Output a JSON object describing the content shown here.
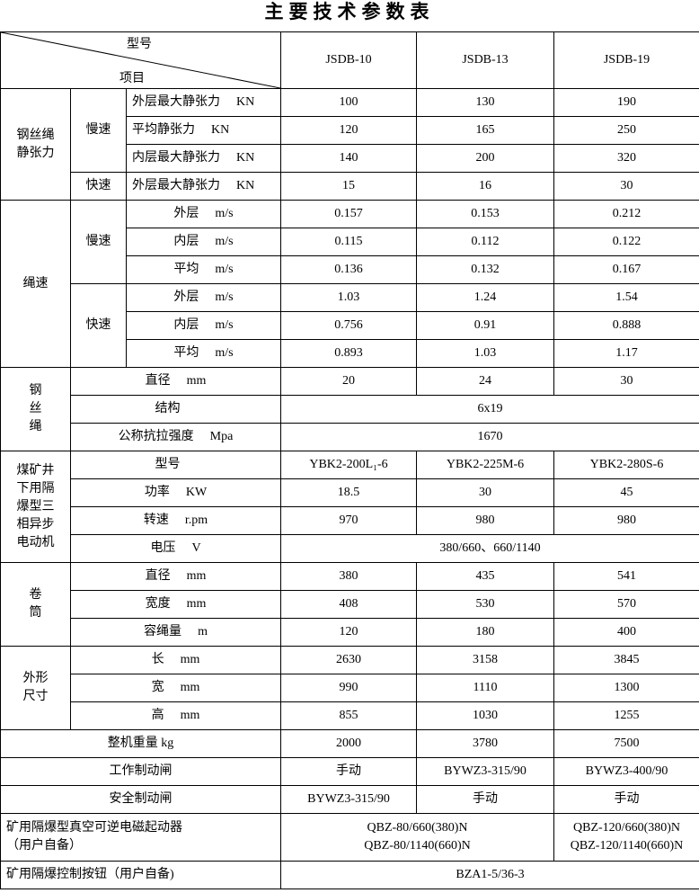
{
  "title": "主要技术参数表",
  "header": {
    "corner_top": "型号",
    "corner_bottom": "项目",
    "models": [
      "JSDB-10",
      "JSDB-13",
      "JSDB-19"
    ]
  },
  "tension": {
    "group": "钢丝绳\n静张力",
    "slow": "慢速",
    "fast": "快速",
    "rows": [
      {
        "label": {
          "name": "外层最大静张力",
          "unit": "KN"
        },
        "values": [
          "100",
          "130",
          "190"
        ]
      },
      {
        "label": {
          "name": "平均静张力",
          "unit": "KN"
        },
        "values": [
          "120",
          "165",
          "250"
        ]
      },
      {
        "label": {
          "name": "内层最大静张力",
          "unit": "KN"
        },
        "values": [
          "140",
          "200",
          "320"
        ]
      },
      {
        "label": {
          "name": "外层最大静张力",
          "unit": "KN"
        },
        "values": [
          "15",
          "16",
          "30"
        ]
      }
    ]
  },
  "speed": {
    "group": "绳速",
    "slow": "慢速",
    "fast": "快速",
    "rows": [
      {
        "label": {
          "name": "外层",
          "unit": "m/s"
        },
        "values": [
          "0.157",
          "0.153",
          "0.212"
        ]
      },
      {
        "label": {
          "name": "内层",
          "unit": "m/s"
        },
        "values": [
          "0.115",
          "0.112",
          "0.122"
        ]
      },
      {
        "label": {
          "name": "平均",
          "unit": "m/s"
        },
        "values": [
          "0.136",
          "0.132",
          "0.167"
        ]
      },
      {
        "label": {
          "name": "外层",
          "unit": "m/s"
        },
        "values": [
          "1.03",
          "1.24",
          "1.54"
        ]
      },
      {
        "label": {
          "name": "内层",
          "unit": "m/s"
        },
        "values": [
          "0.756",
          "0.91",
          "0.888"
        ]
      },
      {
        "label": {
          "name": "平均",
          "unit": "m/s"
        },
        "values": [
          "0.893",
          "1.03",
          "1.17"
        ]
      }
    ]
  },
  "rope": {
    "group": "钢\n丝\n绳",
    "rows": [
      {
        "label": {
          "name": "直径",
          "unit": "mm"
        },
        "values": [
          "20",
          "24",
          "30"
        ]
      },
      {
        "label": {
          "name": "结构",
          "unit": ""
        },
        "values": [
          "6x19"
        ]
      },
      {
        "label": {
          "name": "公称抗拉强度",
          "unit": "Mpa"
        },
        "values": [
          "1670"
        ]
      }
    ]
  },
  "motor": {
    "group": "煤矿井\n下用隔\n爆型三\n相异步\n电动机",
    "rows": [
      {
        "label": {
          "name": "型号",
          "unit": ""
        },
        "values": [
          "YBK2-200L₁-6",
          "YBK2-225M-6",
          "YBK2-280S-6"
        ]
      },
      {
        "label": {
          "name": "功率",
          "unit": "KW"
        },
        "values": [
          "18.5",
          "30",
          "45"
        ]
      },
      {
        "label": {
          "name": "转速",
          "unit": "r.pm"
        },
        "values": [
          "970",
          "980",
          "980"
        ]
      },
      {
        "label": {
          "name": "电压",
          "unit": "V"
        },
        "values": [
          "380/660、660/1140"
        ]
      }
    ]
  },
  "drum": {
    "group": "卷\n筒",
    "rows": [
      {
        "label": {
          "name": "直径",
          "unit": "mm"
        },
        "values": [
          "380",
          "435",
          "541"
        ]
      },
      {
        "label": {
          "name": "宽度",
          "unit": "mm"
        },
        "values": [
          "408",
          "530",
          "570"
        ]
      },
      {
        "label": {
          "name": "容绳量",
          "unit": "m"
        },
        "values": [
          "120",
          "180",
          "400"
        ]
      }
    ]
  },
  "dims": {
    "group": "外形\n尺寸",
    "rows": [
      {
        "label": {
          "name": "长",
          "unit": "mm"
        },
        "values": [
          "2630",
          "3158",
          "3845"
        ]
      },
      {
        "label": {
          "name": "宽",
          "unit": "mm"
        },
        "values": [
          "990",
          "1110",
          "1300"
        ]
      },
      {
        "label": {
          "name": "高",
          "unit": "mm"
        },
        "values": [
          "855",
          "1030",
          "1255"
        ]
      }
    ]
  },
  "weight": {
    "label": "整机重量 kg",
    "values": [
      "2000",
      "3780",
      "7500"
    ]
  },
  "work_brake": {
    "label": "工作制动闸",
    "values": [
      "手动",
      "BYWZ3-315/90",
      "BYWZ3-400/90"
    ]
  },
  "safety_brake": {
    "label": "安全制动闸",
    "values": [
      "BYWZ3-315/90",
      "手动",
      "手动"
    ]
  },
  "starter": {
    "label": "矿用隔爆型真空可逆电磁起动器\n      （用户自备）",
    "values": [
      "QBZ-80/660(380)N\nQBZ-80/1140(660)N",
      "QBZ-120/660(380)N\nQBZ-120/1140(660)N"
    ]
  },
  "button": {
    "label": "矿用隔爆控制按钮（用户自备)",
    "values": [
      "BZA1-5/36-3"
    ]
  }
}
